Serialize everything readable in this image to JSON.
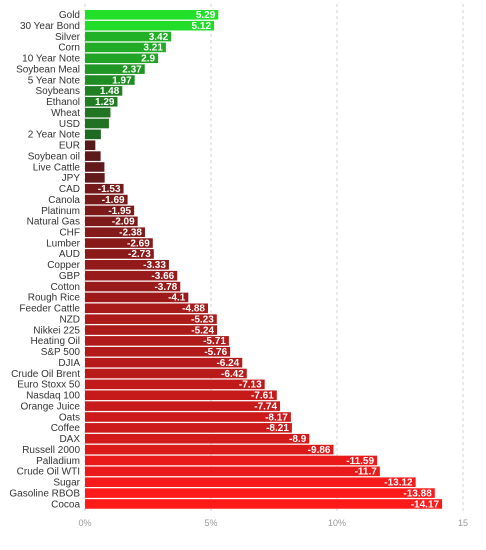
{
  "chart_data": {
    "type": "bar",
    "orientation": "horizontal",
    "categories": [
      "Gold",
      "30 Year Bond",
      "Silver",
      "Corn",
      "10 Year Note",
      "Soybean Meal",
      "5 Year Note",
      "Soybeans",
      "Ethanol",
      "Wheat",
      "USD",
      "2 Year Note",
      "EUR",
      "Soybean oil",
      "Live Cattle",
      "JPY",
      "CAD",
      "Canola",
      "Platinum",
      "Natural Gas",
      "CHF",
      "Lumber",
      "AUD",
      "Copper",
      "GBP",
      "Cotton",
      "Rough Rice",
      "Feeder Cattle",
      "NZD",
      "Nikkei 225",
      "Heating Oil",
      "S&P 500",
      "DJIA",
      "Crude Oil Brent",
      "Euro Stoxx 50",
      "Nasdaq 100",
      "Orange Juice",
      "Oats",
      "Coffee",
      "DAX",
      "Russell 2000",
      "Palladium",
      "Crude Oil WTI",
      "Sugar",
      "Gasoline RBOB",
      "Cocoa"
    ],
    "values": [
      5.29,
      5.12,
      3.42,
      3.21,
      2.9,
      2.37,
      1.97,
      1.48,
      1.29,
      1.01,
      0.95,
      0.63,
      -0.41,
      -0.62,
      -0.77,
      -0.78,
      -1.53,
      -1.69,
      -1.95,
      -2.09,
      -2.38,
      -2.69,
      -2.73,
      -3.33,
      -3.66,
      -3.78,
      -4.1,
      -4.88,
      -5.23,
      -5.24,
      -5.71,
      -5.76,
      -6.24,
      -6.42,
      -7.13,
      -7.61,
      -7.74,
      -8.17,
      -8.21,
      -8.9,
      -9.86,
      -11.59,
      -11.7,
      -13.12,
      -13.88,
      -14.17
    ],
    "value_labels": [
      "5.29",
      "5.12",
      "3.42",
      "3.21",
      "2.9",
      "2.37",
      "1.97",
      "1.48",
      "1.29",
      "1.01",
      "0.95",
      "0.63",
      "-0.41",
      "-0.62",
      "-0.77",
      "-0.78",
      "-1.53",
      "-1.69",
      "-1.95",
      "-2.09",
      "-2.38",
      "-2.69",
      "-2.73",
      "-3.33",
      "-3.66",
      "-3.78",
      "-4.1",
      "-4.88",
      "-5.23",
      "-5.24",
      "-5.71",
      "-5.76",
      "-6.24",
      "-6.42",
      "-7.13",
      "-7.61",
      "-7.74",
      "-8.17",
      "-8.21",
      "-8.9",
      "-9.86",
      "-11.59",
      "-11.7",
      "-13.12",
      "-13.88",
      "-14.17"
    ],
    "bar_length": "absolute value",
    "xlim": [
      0,
      15
    ],
    "ticks": [
      0,
      5,
      10,
      15
    ],
    "tick_labels": [
      "0%",
      "5%",
      "10%",
      "15"
    ],
    "grid": "vertical dashed",
    "colors": {
      "positive_bright": "#22e02a",
      "positive_dark": "#1f5a20",
      "negative_dark": "#3a1a1a",
      "negative_bright": "#ff1a1a"
    }
  }
}
